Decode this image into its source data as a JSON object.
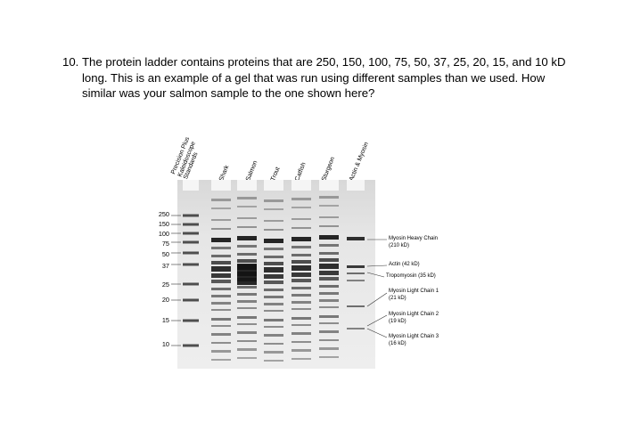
{
  "question": {
    "number": "10.",
    "text": "The protein ladder contains proteins that are 250, 150, 100, 75, 50, 37, 25, 20, 15, and 10 kD long. This is an example of a gel that was run using different samples than we used. How similar was your salmon sample to the one shown here?"
  },
  "gel": {
    "lanes": [
      {
        "label": "Precision Plus Kaleidoscope Standards"
      },
      {
        "label": "Shark"
      },
      {
        "label": "Salmon"
      },
      {
        "label": "Trout"
      },
      {
        "label": "Catfish"
      },
      {
        "label": "Sturgeon"
      },
      {
        "label": "Actin & Myosin"
      }
    ],
    "ladder_markers": [
      "250",
      "150",
      "100",
      "75",
      "50",
      "37",
      "25",
      "20",
      "15",
      "10"
    ],
    "annotations": [
      {
        "line1": "Myosin Heavy Chain",
        "line2": "(210 kD)"
      },
      {
        "line1": "Actin (42 kD)",
        "line2": ""
      },
      {
        "line1": "Tropomyosin (35 kD)",
        "line2": ""
      },
      {
        "line1": "Myosin Light Chain 1",
        "line2": "(21 kD)"
      },
      {
        "line1": "Myosin Light Chain 2",
        "line2": "(19 kD)"
      },
      {
        "line1": "Myosin Light Chain 3",
        "line2": "(16 kD)"
      }
    ]
  }
}
